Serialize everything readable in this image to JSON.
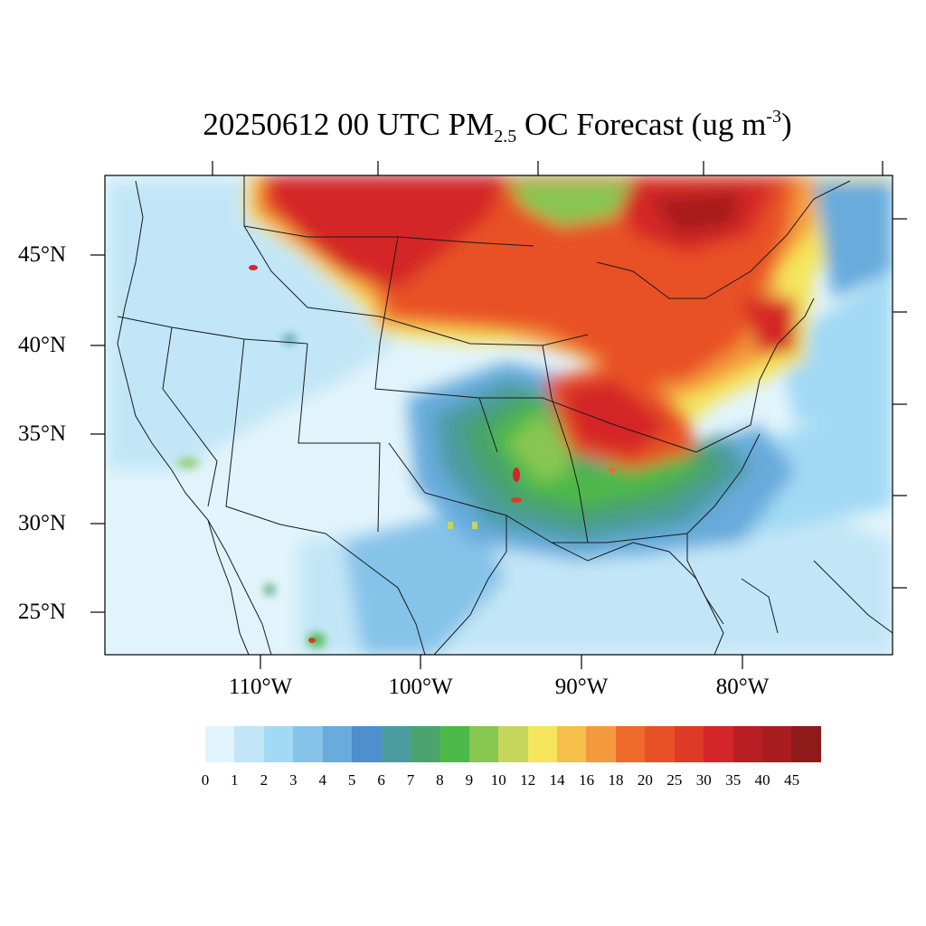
{
  "title": {
    "prefix": "20250612 00 UTC PM",
    "sub": "2.5",
    "middle": " OC Forecast (ug m",
    "sup": "-3",
    "suffix": ")"
  },
  "map": {
    "projection": "Lambert Conformal (CONUS)",
    "lat_labels": [
      "45°N",
      "40°N",
      "35°N",
      "30°N",
      "25°N"
    ],
    "lon_labels": [
      "110°W",
      "100°W",
      "90°W",
      "80°W"
    ],
    "field": "PM2.5 organic carbon concentration",
    "high_regions": [
      "northern plains & upper midwest",
      "Great Lakes",
      "Ohio Valley",
      "northeast corridor",
      "southern Canada"
    ]
  },
  "colorbar": {
    "colors": [
      "#e2f4fb",
      "#c2e6f7",
      "#a2d9f4",
      "#86c3e9",
      "#68abdc",
      "#4f8fcd",
      "#4b9ca0",
      "#4aa26d",
      "#4db84a",
      "#88c652",
      "#c6d55c",
      "#f4e55c",
      "#f6bf49",
      "#f49a3e",
      "#ee6a2b",
      "#e85128",
      "#dd3b26",
      "#d42528",
      "#b81e22",
      "#a81c1f",
      "#8e1a1a"
    ],
    "labels": [
      "0",
      "1",
      "2",
      "3",
      "4",
      "5",
      "6",
      "7",
      "8",
      "9",
      "10",
      "12",
      "14",
      "16",
      "18",
      "20",
      "25",
      "30",
      "35",
      "40",
      "45"
    ]
  }
}
